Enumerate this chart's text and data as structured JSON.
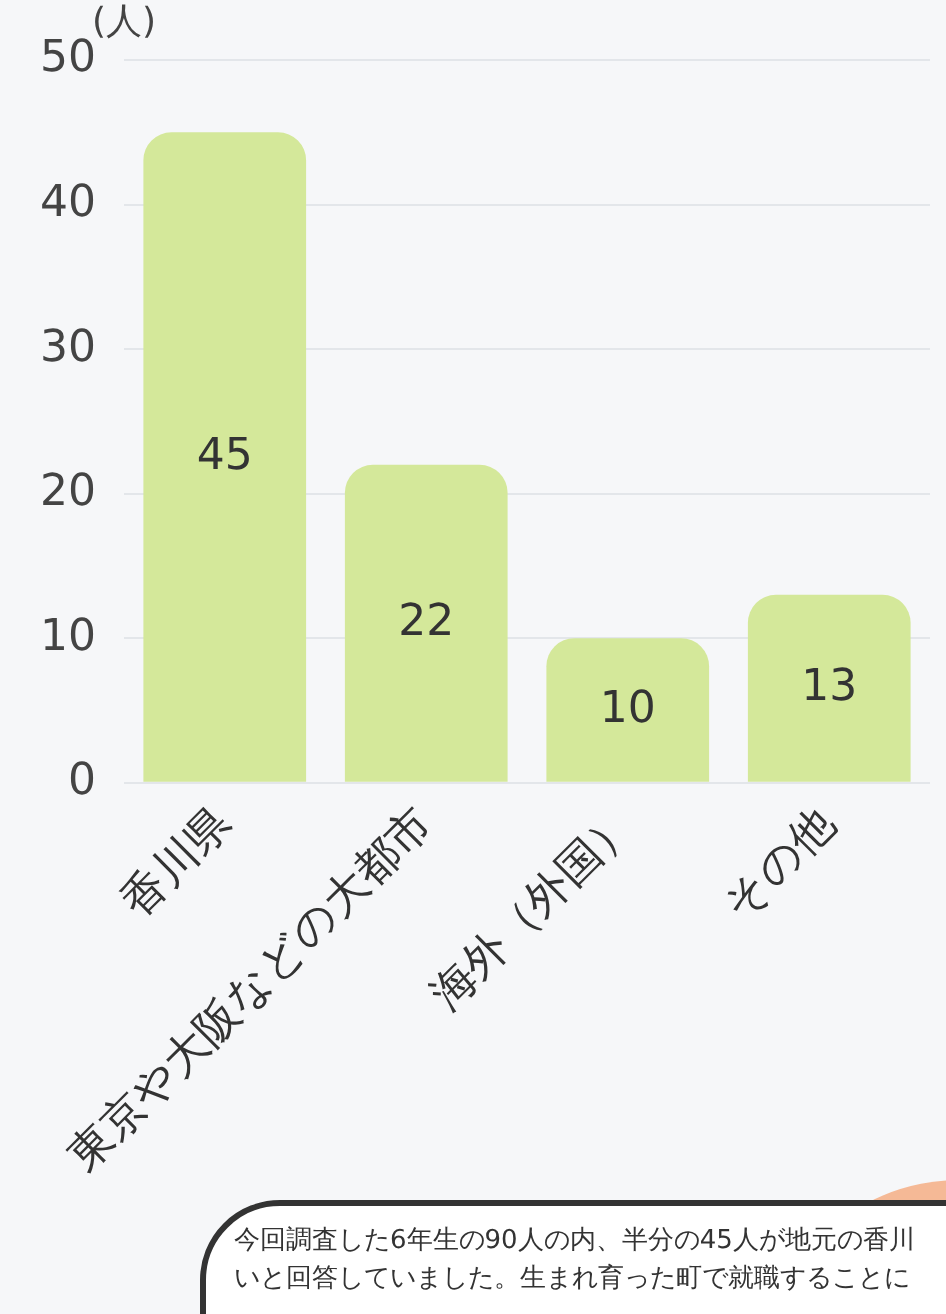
{
  "chart_data": {
    "type": "bar",
    "ylabel": "(人)",
    "categories": [
      "香川県",
      "東京や大阪などの大都市",
      "海外（外国）",
      "その他"
    ],
    "values": [
      45,
      22,
      10,
      13
    ],
    "color": "#d4e89a",
    "ylim": [
      0,
      50
    ],
    "yticks": [
      0,
      10,
      20,
      30,
      40,
      50
    ],
    "grid": "y",
    "data_labels": true,
    "annotations": [
      "今回調査した6年生の90人の内、半分の45人が地元の香川",
      "いと回答していました。生まれ育った町で就職することに"
    ]
  }
}
